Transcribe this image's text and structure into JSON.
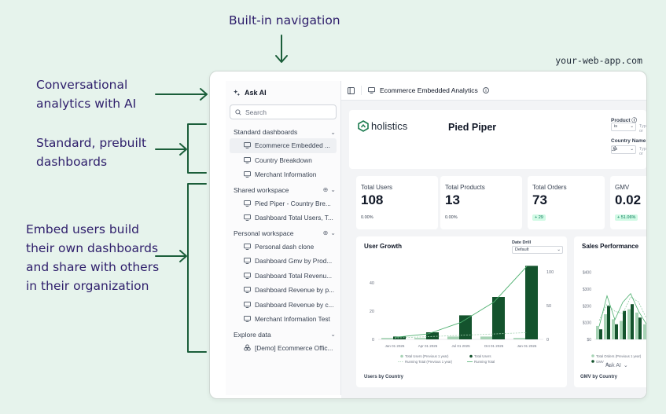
{
  "callouts": {
    "navigation": "Built-in navigation",
    "conversational_1": "Conversational",
    "conversational_2": "analytics with AI",
    "standard_1": "Standard, prebuilt",
    "standard_2": "dashboards",
    "embed_1": "Embed users build",
    "embed_2": "their own dashboards",
    "embed_3": "and share with others",
    "embed_4": "in their organization"
  },
  "url": "your-web-app.com",
  "sidebar": {
    "ask_ai": "Ask AI",
    "search_placeholder": "Search",
    "sections": [
      {
        "title": "Standard dashboards",
        "items": [
          "Ecommerce Embedded ...",
          "Country Breakdown",
          "Merchant Information"
        ]
      },
      {
        "title": "Shared workspace",
        "items": [
          "Pied Piper - Country Bre...",
          "Dashboard Total Users, T..."
        ]
      },
      {
        "title": "Personal workspace",
        "items": [
          "Personal dash clone",
          "Dashboard Gmv by Prod...",
          "Dashboard Total Revenu...",
          "Dashboard Revenue by p...",
          "Dashboard Revenue by c...",
          "Merchant Information Test"
        ]
      },
      {
        "title": "Explore data",
        "items": [
          "[Demo] Ecommerce Offic..."
        ]
      }
    ]
  },
  "topbar": {
    "title": "Ecommerce Embedded Analytics"
  },
  "header": {
    "logo_text": "holistics",
    "company": "Pied Piper",
    "filters": [
      {
        "label": "Product",
        "op": "is",
        "placeholder": "Type or"
      },
      {
        "label": "Country Name",
        "op": "is",
        "placeholder": "Type or"
      }
    ]
  },
  "kpis": [
    {
      "title": "Total Users",
      "value": "108",
      "change": "0.00%"
    },
    {
      "title": "Total Products",
      "value": "13",
      "change": "0.00%"
    },
    {
      "title": "Total Orders",
      "value": "73",
      "change": "+ 29"
    },
    {
      "title": "GMV",
      "value": "0.02",
      "change": "+ 51.06%"
    }
  ],
  "colors": {
    "accent": "#14532d",
    "light": "#a7d3b5",
    "arrow": "#1b5e3a"
  },
  "user_growth": {
    "title": "User Growth",
    "date_drill_label": "Date Drill",
    "date_drill_value": "Default",
    "footer_title": "Users by Country"
  },
  "sales": {
    "title": "Sales Performance",
    "footer_title": "GMV by Country",
    "ask_ai": "Ask AI"
  },
  "chart_data": [
    {
      "type": "bar",
      "title": "User Growth",
      "categories": [
        "Jan 01 2025",
        "Apr 01 2025",
        "Jul 01 2025",
        "Oct 01 2025",
        "Jan 01 2026"
      ],
      "yticks_left": [
        "0",
        "20",
        "40"
      ],
      "yticks_right": [
        "0",
        "50",
        "100"
      ],
      "ylim_left": [
        0,
        55
      ],
      "ylim_right": [
        0,
        115
      ],
      "series": [
        {
          "name": "Total Users (Previous 1 year)",
          "values": [
            1,
            1,
            2,
            2,
            1
          ],
          "color": "#a7d3b5"
        },
        {
          "name": "Total Users",
          "values": [
            2,
            5,
            17,
            30,
            52
          ],
          "color": "#14532d"
        },
        {
          "name": "Running Total (Previous 1 year)",
          "values": [
            2,
            4,
            6,
            8,
            10
          ],
          "color": "#a7d3b5",
          "style": "dashed"
        },
        {
          "name": "Running Total",
          "values": [
            3,
            8,
            25,
            55,
            108
          ],
          "color": "#4caf6e",
          "style": "line"
        }
      ]
    },
    {
      "type": "bar",
      "title": "Sales Performance",
      "yticks": [
        "$0",
        "$100",
        "$200",
        "$300",
        "$400"
      ],
      "ylim": [
        0,
        450
      ],
      "series": [
        {
          "name": "Total Orders (Previous 1 year)",
          "values": [
            80,
            150,
            120,
            110,
            180,
            160,
            90
          ],
          "color": "#a7d3b5"
        },
        {
          "name": "GMV",
          "values": [
            60,
            200,
            90,
            170,
            210,
            130,
            70
          ],
          "color": "#14532d"
        }
      ]
    }
  ]
}
